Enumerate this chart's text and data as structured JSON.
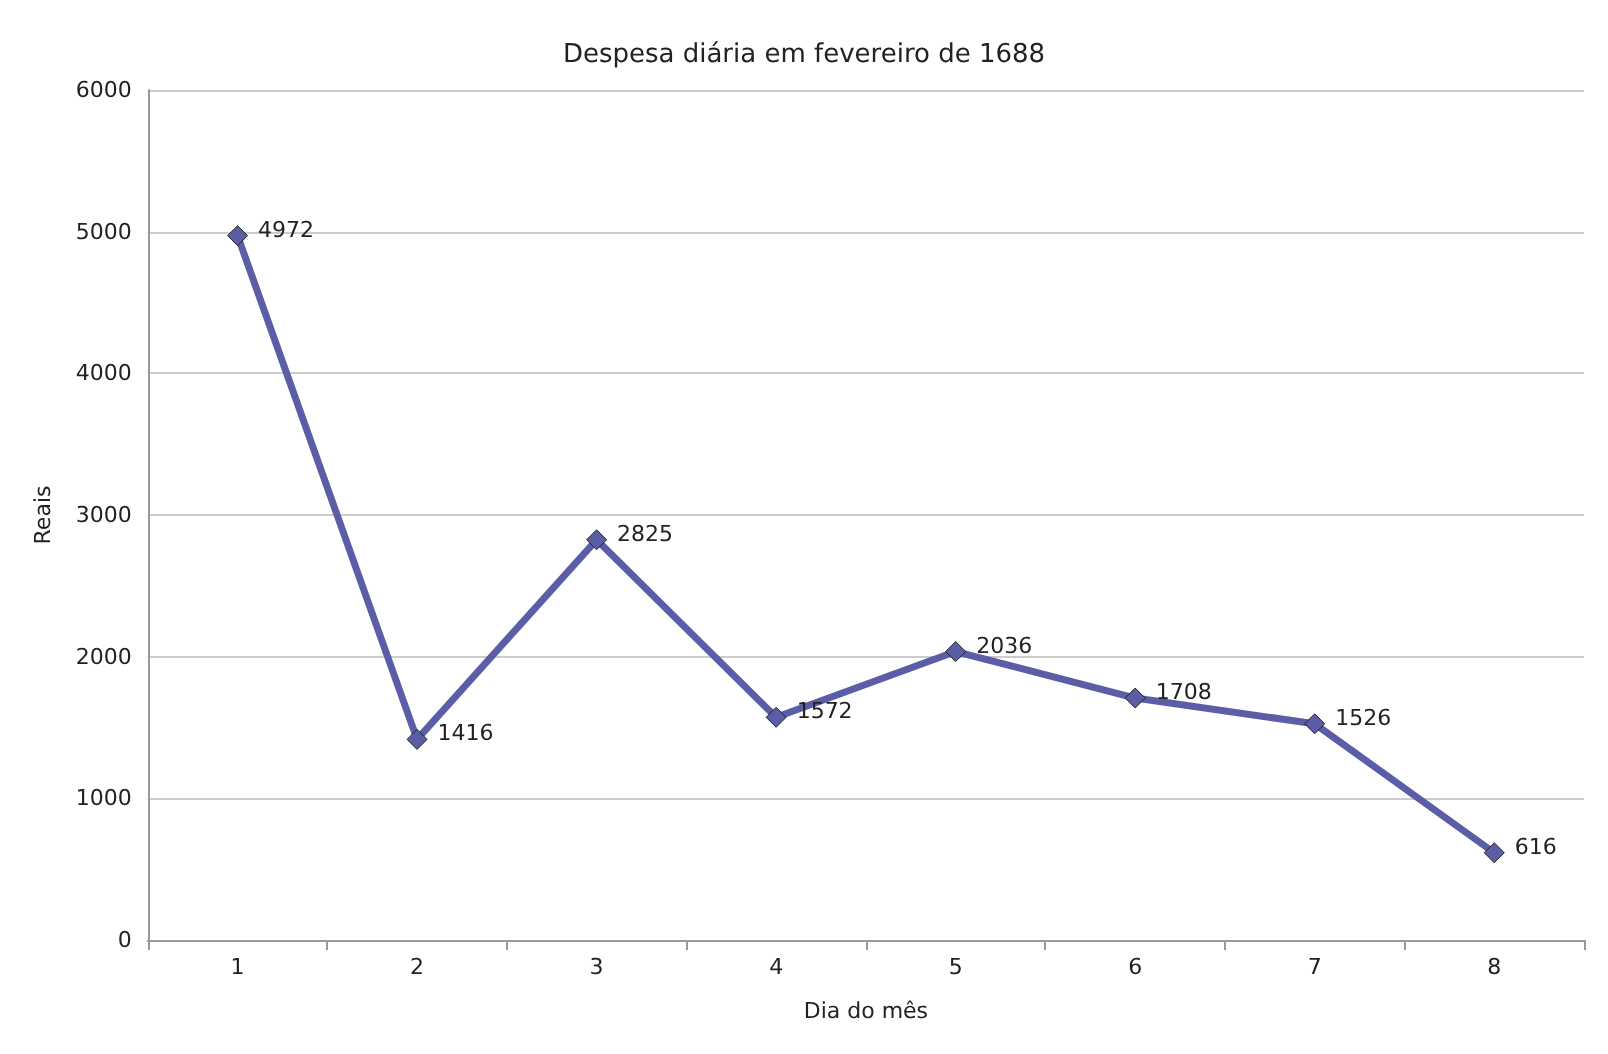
{
  "chart_data": {
    "type": "line",
    "title": "Despesa diária em fevereiro de 1688",
    "xlabel": "Dia do mês",
    "ylabel": "Reais",
    "categories": [
      "1",
      "2",
      "3",
      "4",
      "5",
      "6",
      "7",
      "8"
    ],
    "series": [
      {
        "color": "#5b5ea6",
        "values": [
          4972,
          1416,
          2825,
          1572,
          2036,
          1708,
          1526,
          616
        ]
      }
    ],
    "ylim": [
      0,
      6000
    ],
    "yticks": [
      0,
      1000,
      2000,
      3000,
      4000,
      5000,
      6000
    ],
    "grid": "y",
    "marker": "diamond",
    "line_style": "solid",
    "data_labels": true
  }
}
